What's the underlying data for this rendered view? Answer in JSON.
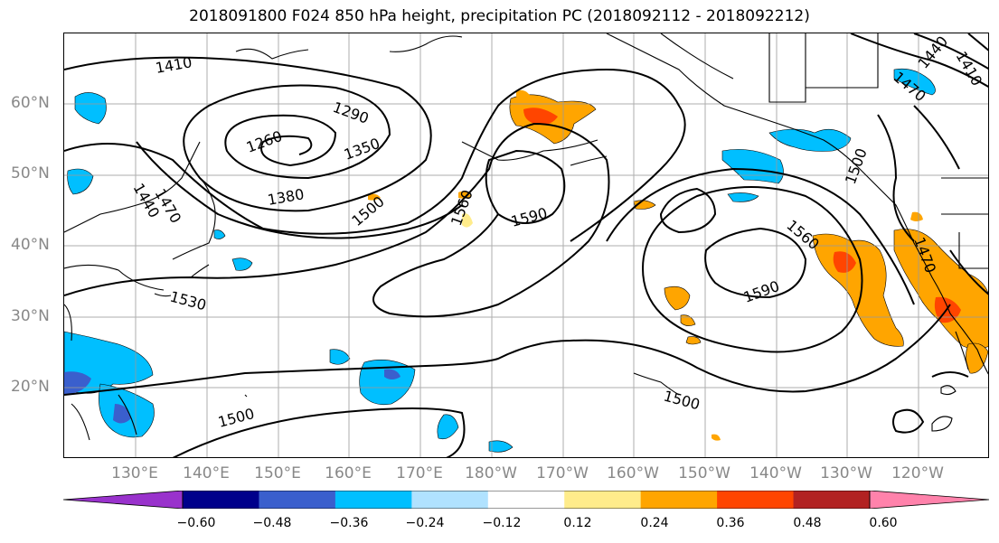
{
  "title": "2018091800 F024 850 hPa height, precipitation PC (2018092112 - 2018092212)",
  "lat_labels": [
    "60°N",
    "50°N",
    "40°N",
    "30°N",
    "20°N"
  ],
  "lon_labels": [
    "130°E",
    "140°E",
    "150°E",
    "160°E",
    "170°E",
    "180°W",
    "170°W",
    "160°W",
    "150°W",
    "140°W",
    "130°W",
    "120°W"
  ],
  "contour_labels": [
    "1410",
    "1290",
    "1260",
    "1350",
    "1380",
    "1440",
    "1470",
    "1500",
    "1560",
    "1590",
    "1530",
    "1590",
    "1560",
    "1500",
    "1500",
    "1410",
    "1440",
    "1470",
    "1470",
    "1500"
  ],
  "colorbar": {
    "ticks": [
      "−0.60",
      "−0.48",
      "−0.36",
      "−0.24",
      "−0.12",
      "0.12",
      "0.24",
      "0.36",
      "0.48",
      "0.60"
    ],
    "colors": [
      "#9932CC",
      "#00008B",
      "#3A5FCD",
      "#00BFFF",
      "#B0E2FF",
      "#FFFFFF",
      "#FFEC8B",
      "#FFA500",
      "#FF4500",
      "#B22222",
      "#FF82AB"
    ]
  }
}
